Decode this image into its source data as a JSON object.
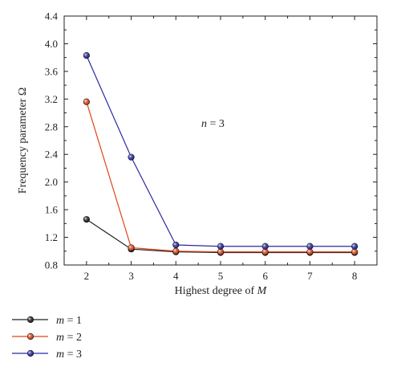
{
  "chart_data": {
    "type": "line",
    "xlabel_prefix": "Highest degree of ",
    "xlabel_var": "M",
    "ylabel": "Frequency parameter Ω",
    "x": [
      2,
      3,
      4,
      5,
      6,
      7,
      8
    ],
    "xlim": [
      1.5,
      8.5
    ],
    "ylim": [
      0.8,
      4.4
    ],
    "xticks": [
      "2",
      "3",
      "4",
      "5",
      "6",
      "7",
      "8"
    ],
    "yticks": [
      "0.8",
      "1.2",
      "1.6",
      "2.0",
      "2.4",
      "2.8",
      "3.2",
      "3.6",
      "4.0",
      "4.4"
    ],
    "annotation": {
      "var": "n",
      "rest": " = 3"
    },
    "grid": false,
    "legend_position": "below",
    "series": [
      {
        "name_var": "m",
        "name_rest": " = 1",
        "color": "#222222",
        "values": [
          1.46,
          1.03,
          0.99,
          0.98,
          0.98,
          0.98,
          0.98
        ]
      },
      {
        "name_var": "m",
        "name_rest": " = 2",
        "color": "#e0451b",
        "values": [
          3.16,
          1.05,
          1.0,
          0.99,
          0.99,
          0.99,
          0.99
        ]
      },
      {
        "name_var": "m",
        "name_rest": " = 3",
        "color": "#2b2aa0",
        "values": [
          3.83,
          2.36,
          1.09,
          1.07,
          1.07,
          1.07,
          1.07
        ]
      }
    ]
  }
}
